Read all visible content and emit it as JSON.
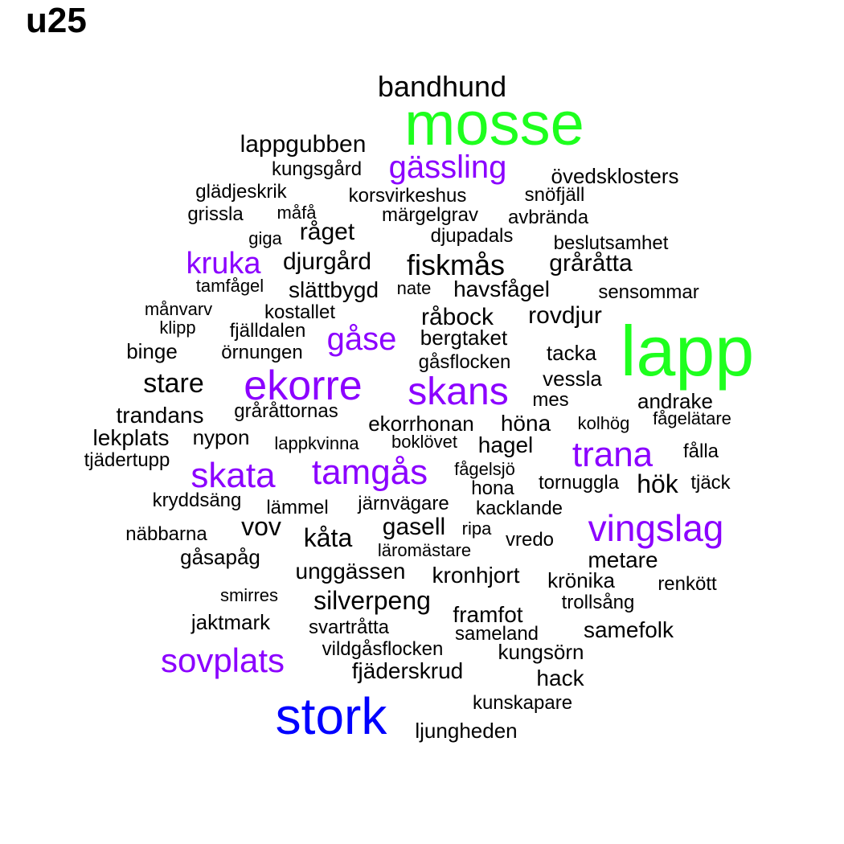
{
  "title": "u25",
  "colors": {
    "black": "#000000",
    "purple": "#8B00FF",
    "green": "#1EFF1E",
    "blue": "#0000FF"
  },
  "words": [
    {
      "text": "bandhund",
      "color": "black"
    },
    {
      "text": "mosse",
      "color": "green"
    },
    {
      "text": "lappgubben",
      "color": "black"
    },
    {
      "text": "gässling",
      "color": "purple"
    },
    {
      "text": "kungsgård",
      "color": "black"
    },
    {
      "text": "övedsklosters",
      "color": "black"
    },
    {
      "text": "glädjeskrik",
      "color": "black"
    },
    {
      "text": "korsvirkeshus",
      "color": "black"
    },
    {
      "text": "snöfjäll",
      "color": "black"
    },
    {
      "text": "grissla",
      "color": "black"
    },
    {
      "text": "måfå",
      "color": "black"
    },
    {
      "text": "märgelgrav",
      "color": "black"
    },
    {
      "text": "avbrända",
      "color": "black"
    },
    {
      "text": "råget",
      "color": "black"
    },
    {
      "text": "giga",
      "color": "black"
    },
    {
      "text": "djupadals",
      "color": "black"
    },
    {
      "text": "beslutsamhet",
      "color": "black"
    },
    {
      "text": "kruka",
      "color": "purple"
    },
    {
      "text": "djurgård",
      "color": "black"
    },
    {
      "text": "fiskmås",
      "color": "black"
    },
    {
      "text": "gråråtta",
      "color": "black"
    },
    {
      "text": "tamfågel",
      "color": "black"
    },
    {
      "text": "slättbygd",
      "color": "black"
    },
    {
      "text": "nate",
      "color": "black"
    },
    {
      "text": "havsfågel",
      "color": "black"
    },
    {
      "text": "sensommar",
      "color": "black"
    },
    {
      "text": "månvarv",
      "color": "black"
    },
    {
      "text": "kostallet",
      "color": "black"
    },
    {
      "text": "råbock",
      "color": "black"
    },
    {
      "text": "rovdjur",
      "color": "black"
    },
    {
      "text": "lapp",
      "color": "green"
    },
    {
      "text": "klipp",
      "color": "black"
    },
    {
      "text": "fjälldalen",
      "color": "black"
    },
    {
      "text": "gåse",
      "color": "purple"
    },
    {
      "text": "bergtaket",
      "color": "black"
    },
    {
      "text": "binge",
      "color": "black"
    },
    {
      "text": "örnungen",
      "color": "black"
    },
    {
      "text": "gåsflocken",
      "color": "black"
    },
    {
      "text": "tacka",
      "color": "black"
    },
    {
      "text": "stare",
      "color": "black"
    },
    {
      "text": "ekorre",
      "color": "purple"
    },
    {
      "text": "skans",
      "color": "purple"
    },
    {
      "text": "vessla",
      "color": "black"
    },
    {
      "text": "mes",
      "color": "black"
    },
    {
      "text": "andrake",
      "color": "black"
    },
    {
      "text": "trandans",
      "color": "black"
    },
    {
      "text": "gråråttornas",
      "color": "black"
    },
    {
      "text": "ekorrhonan",
      "color": "black"
    },
    {
      "text": "höna",
      "color": "black"
    },
    {
      "text": "kolhög",
      "color": "black"
    },
    {
      "text": "fågelätare",
      "color": "black"
    },
    {
      "text": "lekplats",
      "color": "black"
    },
    {
      "text": "nypon",
      "color": "black"
    },
    {
      "text": "lappkvinna",
      "color": "black"
    },
    {
      "text": "boklövet",
      "color": "black"
    },
    {
      "text": "hagel",
      "color": "black"
    },
    {
      "text": "trana",
      "color": "purple"
    },
    {
      "text": "fålla",
      "color": "black"
    },
    {
      "text": "tjädertupp",
      "color": "black"
    },
    {
      "text": "skata",
      "color": "purple"
    },
    {
      "text": "tamgås",
      "color": "purple"
    },
    {
      "text": "fågelsjö",
      "color": "black"
    },
    {
      "text": "tornuggla",
      "color": "black"
    },
    {
      "text": "hök",
      "color": "black"
    },
    {
      "text": "tjäck",
      "color": "black"
    },
    {
      "text": "hona",
      "color": "black"
    },
    {
      "text": "kryddsäng",
      "color": "black"
    },
    {
      "text": "lämmel",
      "color": "black"
    },
    {
      "text": "järnvägare",
      "color": "black"
    },
    {
      "text": "kacklande",
      "color": "black"
    },
    {
      "text": "vov",
      "color": "black"
    },
    {
      "text": "gasell",
      "color": "black"
    },
    {
      "text": "ripa",
      "color": "black"
    },
    {
      "text": "vingslag",
      "color": "purple"
    },
    {
      "text": "näbbarna",
      "color": "black"
    },
    {
      "text": "kåta",
      "color": "black"
    },
    {
      "text": "vredo",
      "color": "black"
    },
    {
      "text": "läromästare",
      "color": "black"
    },
    {
      "text": "gåsapåg",
      "color": "black"
    },
    {
      "text": "metare",
      "color": "black"
    },
    {
      "text": "unggässen",
      "color": "black"
    },
    {
      "text": "kronhjort",
      "color": "black"
    },
    {
      "text": "krönika",
      "color": "black"
    },
    {
      "text": "renkött",
      "color": "black"
    },
    {
      "text": "smirres",
      "color": "black"
    },
    {
      "text": "silverpeng",
      "color": "black"
    },
    {
      "text": "trollsång",
      "color": "black"
    },
    {
      "text": "framfot",
      "color": "black"
    },
    {
      "text": "jaktmark",
      "color": "black"
    },
    {
      "text": "svartråtta",
      "color": "black"
    },
    {
      "text": "samefolk",
      "color": "black"
    },
    {
      "text": "sameland",
      "color": "black"
    },
    {
      "text": "vildgåsflocken",
      "color": "black"
    },
    {
      "text": "kungsörn",
      "color": "black"
    },
    {
      "text": "sovplats",
      "color": "purple"
    },
    {
      "text": "fjäderskrud",
      "color": "black"
    },
    {
      "text": "hack",
      "color": "black"
    },
    {
      "text": "stork",
      "color": "blue"
    },
    {
      "text": "kunskapare",
      "color": "black"
    },
    {
      "text": "ljungheden",
      "color": "black"
    }
  ]
}
